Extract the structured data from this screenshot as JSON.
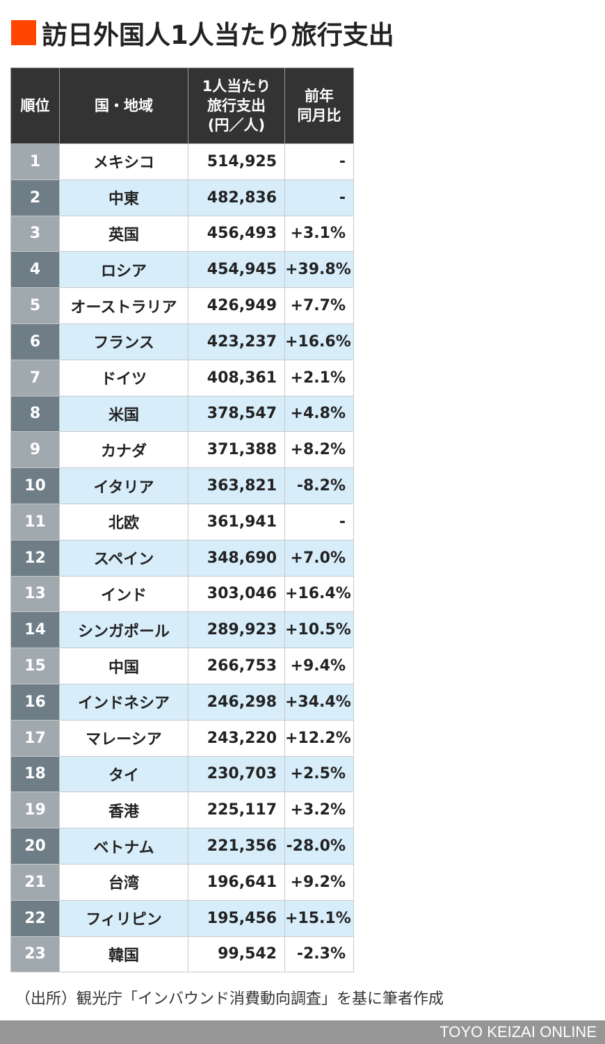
{
  "title": "訪日外国人1人当たり旅行支出",
  "accent_color": "#ff4500",
  "headers": {
    "rank": "順位",
    "country": "国・地域",
    "spend_lines": [
      "1人当たり",
      "旅行支出",
      "(円／人)"
    ],
    "yoy_lines": [
      "前年",
      "同月比"
    ]
  },
  "rows": [
    {
      "rank": "1",
      "country": "メキシコ",
      "spend": "514,925",
      "yoy": "-"
    },
    {
      "rank": "2",
      "country": "中東",
      "spend": "482,836",
      "yoy": "-"
    },
    {
      "rank": "3",
      "country": "英国",
      "spend": "456,493",
      "yoy": "+3.1%"
    },
    {
      "rank": "4",
      "country": "ロシア",
      "spend": "454,945",
      "yoy": "+39.8%"
    },
    {
      "rank": "5",
      "country": "オーストラリア",
      "spend": "426,949",
      "yoy": "+7.7%"
    },
    {
      "rank": "6",
      "country": "フランス",
      "spend": "423,237",
      "yoy": "+16.6%"
    },
    {
      "rank": "7",
      "country": "ドイツ",
      "spend": "408,361",
      "yoy": "+2.1%"
    },
    {
      "rank": "8",
      "country": "米国",
      "spend": "378,547",
      "yoy": "+4.8%"
    },
    {
      "rank": "9",
      "country": "カナダ",
      "spend": "371,388",
      "yoy": "+8.2%"
    },
    {
      "rank": "10",
      "country": "イタリア",
      "spend": "363,821",
      "yoy": "-8.2%"
    },
    {
      "rank": "11",
      "country": "北欧",
      "spend": "361,941",
      "yoy": "-"
    },
    {
      "rank": "12",
      "country": "スペイン",
      "spend": "348,690",
      "yoy": "+7.0%"
    },
    {
      "rank": "13",
      "country": "インド",
      "spend": "303,046",
      "yoy": "+16.4%"
    },
    {
      "rank": "14",
      "country": "シンガポール",
      "spend": "289,923",
      "yoy": "+10.5%"
    },
    {
      "rank": "15",
      "country": "中国",
      "spend": "266,753",
      "yoy": "+9.4%"
    },
    {
      "rank": "16",
      "country": "インドネシア",
      "spend": "246,298",
      "yoy": "+34.4%"
    },
    {
      "rank": "17",
      "country": "マレーシア",
      "spend": "243,220",
      "yoy": "+12.2%"
    },
    {
      "rank": "18",
      "country": "タイ",
      "spend": "230,703",
      "yoy": "+2.5%"
    },
    {
      "rank": "19",
      "country": "香港",
      "spend": "225,117",
      "yoy": "+3.2%"
    },
    {
      "rank": "20",
      "country": "ベトナム",
      "spend": "221,356",
      "yoy": "-28.0%"
    },
    {
      "rank": "21",
      "country": "台湾",
      "spend": "196,641",
      "yoy": "+9.2%"
    },
    {
      "rank": "22",
      "country": "フィリピン",
      "spend": "195,456",
      "yoy": "+15.1%"
    },
    {
      "rank": "23",
      "country": "韓国",
      "spend": "99,542",
      "yoy": "-2.3%"
    }
  ],
  "source": "（出所）観光庁「インバウンド消費動向調査」を基に筆者作成",
  "brand": "TOYO KEIZAI ONLINE"
}
